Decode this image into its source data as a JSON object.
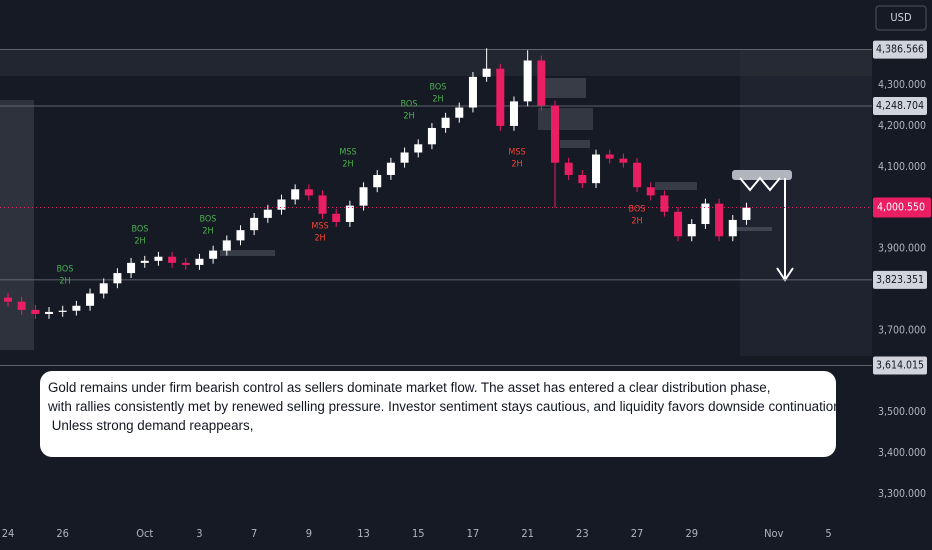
{
  "chart_data": {
    "type": "candlestick",
    "currency": "USD",
    "up_color": "#ffffff",
    "down_color": "#e91e63",
    "open": [
      3780,
      3770,
      3750,
      3740,
      3745,
      3748,
      3760,
      3790,
      3815,
      3840,
      3865,
      3870,
      3880,
      3865,
      3860,
      3875,
      3895,
      3920,
      3945,
      3975,
      3995,
      4020,
      4045,
      4030,
      3985,
      3965,
      4005,
      4050,
      4080,
      4110,
      4135,
      4155,
      4195,
      4220,
      4245,
      4320,
      4340,
      4200,
      4260,
      4360,
      4250,
      4110,
      4080,
      4060,
      4130,
      4120,
      4110,
      4050,
      4030,
      3990,
      3930,
      3960,
      4010,
      3930,
      3970
    ],
    "high": [
      3792,
      3782,
      3762,
      3757,
      3760,
      3772,
      3802,
      3827,
      3852,
      3877,
      3882,
      3892,
      3892,
      3877,
      3887,
      3907,
      3932,
      3957,
      3987,
      4007,
      4032,
      4057,
      4057,
      4042,
      3997,
      4017,
      4062,
      4092,
      4122,
      4147,
      4167,
      4207,
      4232,
      4257,
      4332,
      4390,
      4352,
      4272,
      4385,
      4372,
      4262,
      4122,
      4092,
      4142,
      4142,
      4132,
      4122,
      4062,
      4042,
      4002,
      3972,
      4022,
      4022,
      3982,
      4012
    ],
    "low": [
      3758,
      3738,
      3728,
      3728,
      3733,
      3736,
      3748,
      3778,
      3803,
      3828,
      3853,
      3858,
      3853,
      3848,
      3848,
      3863,
      3883,
      3908,
      3933,
      3963,
      3983,
      4008,
      4018,
      3973,
      3953,
      3953,
      3993,
      4038,
      4068,
      4098,
      4123,
      4143,
      4183,
      4208,
      4233,
      4308,
      4188,
      4188,
      4248,
      4238,
      4000,
      4068,
      4048,
      4048,
      4108,
      4098,
      4038,
      4018,
      3978,
      3918,
      3918,
      3948,
      3918,
      3918,
      3958
    ],
    "close": [
      3770,
      3750,
      3740,
      3745,
      3748,
      3760,
      3790,
      3815,
      3840,
      3865,
      3870,
      3880,
      3865,
      3860,
      3875,
      3895,
      3920,
      3945,
      3975,
      3995,
      4020,
      4045,
      4030,
      3985,
      3965,
      4005,
      4050,
      4080,
      4110,
      4135,
      4155,
      4195,
      4220,
      4245,
      4320,
      4340,
      4200,
      4260,
      4360,
      4250,
      4110,
      4080,
      4060,
      4130,
      4120,
      4110,
      4050,
      4030,
      3990,
      3930,
      3960,
      4010,
      3930,
      3970,
      4000
    ],
    "x_labels": [
      "24",
      "26",
      "Oct",
      "3",
      "7",
      "9",
      "13",
      "15",
      "17",
      "21",
      "23",
      "27",
      "29",
      "Nov",
      "5"
    ],
    "ylim": [
      3236,
      4508
    ],
    "yticks": [
      {
        "value": 4300,
        "label": "4,300.000"
      },
      {
        "value": 4200,
        "label": "4,200.000"
      },
      {
        "value": 4100,
        "label": "4,100.000"
      },
      {
        "value": 3900,
        "label": "3,900.000"
      },
      {
        "value": 3700,
        "label": "3,700.000"
      },
      {
        "value": 3500,
        "label": "3,500.000"
      },
      {
        "value": 3400,
        "label": "3,400.000"
      },
      {
        "value": 3300,
        "label": "3,300.000"
      }
    ],
    "levels": [
      {
        "value": 4386.566,
        "label": "4,386.566"
      },
      {
        "value": 4248.704,
        "label": "4,248.704"
      },
      {
        "value": 3823.351,
        "label": "3,823.351"
      },
      {
        "value": 3614.015,
        "label": "3,614.015"
      }
    ],
    "current_price": {
      "value": 4000.55,
      "label": "4,000.550",
      "color": "#e91e63"
    },
    "annotations": [
      {
        "label": "BOS",
        "timeframe": "2H",
        "color": "#4caf50"
      },
      {
        "label": "BOS",
        "timeframe": "2H",
        "color": "#4caf50"
      },
      {
        "label": "BOS",
        "timeframe": "2H",
        "color": "#4caf50"
      },
      {
        "label": "MSS",
        "timeframe": "2H",
        "color": "#f44336"
      },
      {
        "label": "MSS",
        "timeframe": "2H",
        "color": "#4caf50"
      },
      {
        "label": "BOS",
        "timeframe": "2H",
        "color": "#4caf50"
      },
      {
        "label": "BOS",
        "timeframe": "2H",
        "color": "#4caf50"
      },
      {
        "label": "MSS",
        "timeframe": "2H",
        "color": "#f44336"
      },
      {
        "label": "BOS",
        "timeframe": "2H",
        "color": "#f44336"
      }
    ],
    "note": [
      "Gold remains under firm bearish control as sellers dominate market flow. The asset has entered a clear distribution phase,",
      "with rallies consistently met by renewed selling pressure. Investor sentiment stays cautious, and liquidity favors downside continuation.",
      "&nbsp;Unless strong demand reappears,"
    ]
  }
}
